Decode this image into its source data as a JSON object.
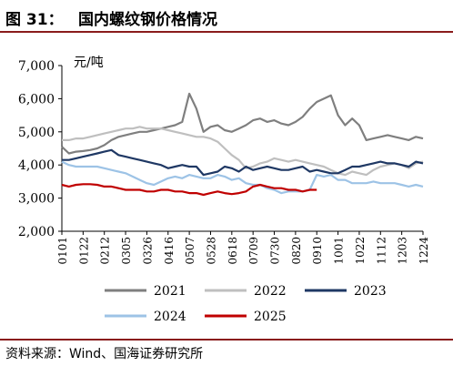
{
  "figure": {
    "label": "图 31：",
    "title": "国内螺纹钢价格情况",
    "source": "资料来源：Wind、国海证券研究所"
  },
  "colors": {
    "rule": "#8a1c1c",
    "s2021": "#7f7f7f",
    "s2022": "#bfbfbf",
    "s2023": "#1f3864",
    "s2024": "#9dc3e6",
    "s2025": "#c00000"
  },
  "chart_data": {
    "type": "line",
    "ylabel": "元/吨",
    "ylim": [
      2000,
      7000
    ],
    "yticks": [
      "2,000",
      "3,000",
      "4,000",
      "5,000",
      "6,000",
      "7,000"
    ],
    "xticks": [
      "0101",
      "0122",
      "0212",
      "0305",
      "0326",
      "0416",
      "0507",
      "0528",
      "0618",
      "0709",
      "0730",
      "0820",
      "0910",
      "1001",
      "1022",
      "1112",
      "1203",
      "1224"
    ],
    "x_range": [
      0,
      51
    ],
    "grid": false,
    "legend": "bottom",
    "series": [
      {
        "name": "2021",
        "x": [
          0,
          1,
          2,
          3,
          4,
          5,
          6,
          7,
          8,
          9,
          10,
          11,
          12,
          13,
          14,
          15,
          16,
          17,
          18,
          19,
          20,
          21,
          22,
          23,
          24,
          25,
          26,
          27,
          28,
          29,
          30,
          31,
          32,
          33,
          34,
          35,
          36,
          37,
          38,
          39,
          40,
          41,
          42,
          43,
          44,
          45,
          46,
          47,
          48,
          49,
          50,
          51
        ],
        "y": [
          4550,
          4350,
          4400,
          4420,
          4450,
          4500,
          4600,
          4750,
          4850,
          4900,
          4950,
          5000,
          5000,
          5050,
          5100,
          5150,
          5200,
          5300,
          6150,
          5700,
          5000,
          5150,
          5200,
          5050,
          5000,
          5100,
          5200,
          5350,
          5400,
          5300,
          5350,
          5250,
          5200,
          5300,
          5450,
          5700,
          5900,
          6000,
          6100,
          5500,
          5200,
          5400,
          5200,
          4750,
          4800,
          4850,
          4900,
          4850,
          4800,
          4750,
          4850,
          4800
        ]
      },
      {
        "name": "2022",
        "x": [
          0,
          1,
          2,
          3,
          4,
          5,
          6,
          7,
          8,
          9,
          10,
          11,
          12,
          13,
          14,
          15,
          16,
          17,
          18,
          19,
          20,
          21,
          22,
          23,
          24,
          25,
          26,
          27,
          28,
          29,
          30,
          31,
          32,
          33,
          34,
          35,
          36,
          37,
          38,
          39,
          40,
          41,
          42,
          43,
          44,
          45,
          46,
          47,
          48,
          49,
          50,
          51
        ],
        "y": [
          4750,
          4750,
          4800,
          4800,
          4850,
          4900,
          4950,
          5000,
          5050,
          5100,
          5100,
          5150,
          5100,
          5100,
          5100,
          5050,
          5000,
          4950,
          4900,
          4850,
          4850,
          4800,
          4700,
          4500,
          4300,
          4150,
          3900,
          3950,
          4050,
          4100,
          4200,
          4150,
          4100,
          4150,
          4100,
          4050,
          4000,
          3950,
          3850,
          3750,
          3700,
          3800,
          3750,
          3700,
          3850,
          3950,
          4000,
          4050,
          4000,
          3900,
          4050,
          4100
        ]
      },
      {
        "name": "2023",
        "x": [
          0,
          1,
          2,
          3,
          4,
          5,
          6,
          7,
          8,
          9,
          10,
          11,
          12,
          13,
          14,
          15,
          16,
          17,
          18,
          19,
          20,
          21,
          22,
          23,
          24,
          25,
          26,
          27,
          28,
          29,
          30,
          31,
          32,
          33,
          34,
          35,
          36,
          37,
          38,
          39,
          40,
          41,
          42,
          43,
          44,
          45,
          46,
          47,
          48,
          49,
          50,
          51
        ],
        "y": [
          4150,
          4150,
          4200,
          4250,
          4300,
          4350,
          4400,
          4450,
          4300,
          4250,
          4200,
          4150,
          4100,
          4050,
          4000,
          3900,
          3950,
          4000,
          3950,
          3950,
          3700,
          3750,
          3800,
          3950,
          3900,
          3800,
          3950,
          3850,
          3900,
          3950,
          3900,
          3850,
          3850,
          3900,
          3950,
          3800,
          3850,
          3800,
          3750,
          3750,
          3850,
          3950,
          3950,
          4000,
          4050,
          4100,
          4050,
          4050,
          4000,
          3950,
          4100,
          4050
        ]
      },
      {
        "name": "2024",
        "x": [
          0,
          1,
          2,
          3,
          4,
          5,
          6,
          7,
          8,
          9,
          10,
          11,
          12,
          13,
          14,
          15,
          16,
          17,
          18,
          19,
          20,
          21,
          22,
          23,
          24,
          25,
          26,
          27,
          28,
          29,
          30,
          31,
          32,
          33,
          34,
          35,
          36,
          37,
          38,
          39,
          40,
          41,
          42,
          43,
          44,
          45,
          46,
          47,
          48,
          49,
          50,
          51
        ],
        "y": [
          4100,
          4000,
          3950,
          3950,
          3950,
          3950,
          3900,
          3850,
          3800,
          3750,
          3650,
          3550,
          3450,
          3400,
          3500,
          3600,
          3650,
          3600,
          3700,
          3650,
          3600,
          3600,
          3700,
          3650,
          3550,
          3600,
          3450,
          3400,
          3400,
          3300,
          3250,
          3150,
          3200,
          3200,
          3200,
          3250,
          3700,
          3650,
          3700,
          3550,
          3550,
          3450,
          3450,
          3450,
          3500,
          3450,
          3450,
          3450,
          3400,
          3350,
          3400,
          3350
        ]
      },
      {
        "name": "2025",
        "x": [
          0,
          1,
          2,
          3,
          4,
          5,
          6,
          7,
          8,
          9,
          10,
          11,
          12,
          13,
          14,
          15,
          16,
          17,
          18,
          19,
          20,
          21,
          22,
          23,
          24,
          25,
          26,
          27,
          28,
          29,
          30,
          31,
          32,
          33,
          34,
          35,
          36
        ],
        "y": [
          3400,
          3350,
          3400,
          3420,
          3420,
          3400,
          3350,
          3350,
          3300,
          3250,
          3250,
          3250,
          3200,
          3200,
          3250,
          3250,
          3200,
          3200,
          3150,
          3150,
          3100,
          3150,
          3200,
          3150,
          3120,
          3150,
          3200,
          3350,
          3400,
          3350,
          3300,
          3300,
          3250,
          3250,
          3200,
          3250,
          3250
        ]
      }
    ]
  }
}
